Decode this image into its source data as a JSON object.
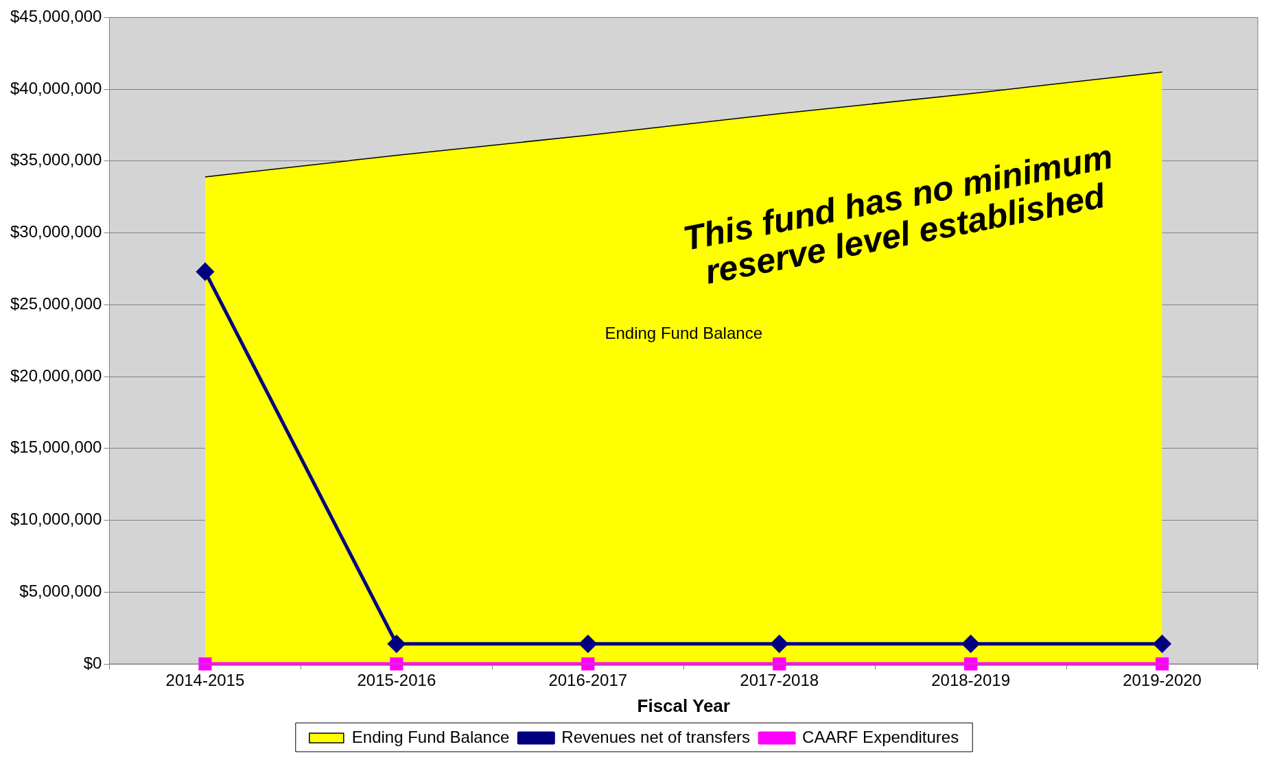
{
  "chart_data": {
    "type": "line",
    "xlabel": "Fiscal Year",
    "categories": [
      "2014-2015",
      "2015-2016",
      "2016-2017",
      "2017-2018",
      "2018-2019",
      "2019-2020"
    ],
    "series": [
      {
        "name": "Ending Fund Balance",
        "type": "area",
        "color": "#ffff00",
        "values": [
          33900000,
          35400000,
          36800000,
          38300000,
          39700000,
          41200000
        ]
      },
      {
        "name": "Revenues net of transfers",
        "color": "#000080",
        "marker": "diamond",
        "values": [
          27300000,
          1400000,
          1400000,
          1400000,
          1400000,
          1400000
        ]
      },
      {
        "name": "CAARF Expenditures",
        "color": "#ff00ff",
        "marker": "square",
        "values": [
          0,
          0,
          0,
          0,
          0,
          0
        ]
      }
    ],
    "ylim": [
      0,
      45000000
    ],
    "yticks": [
      {
        "value": 0,
        "label": "$0"
      },
      {
        "value": 5000000,
        "label": "$5,000,000"
      },
      {
        "value": 10000000,
        "label": "$10,000,000"
      },
      {
        "value": 15000000,
        "label": "$15,000,000"
      },
      {
        "value": 20000000,
        "label": "$20,000,000"
      },
      {
        "value": 25000000,
        "label": "$25,000,000"
      },
      {
        "value": 30000000,
        "label": "$30,000,000"
      },
      {
        "value": 35000000,
        "label": "$35,000,000"
      },
      {
        "value": 40000000,
        "label": "$40,000,000"
      },
      {
        "value": 45000000,
        "label": "$45,000,000"
      }
    ],
    "grid": "y",
    "legend": "bottom",
    "annotations": [
      "This fund has no minimum reserve level established"
    ]
  }
}
